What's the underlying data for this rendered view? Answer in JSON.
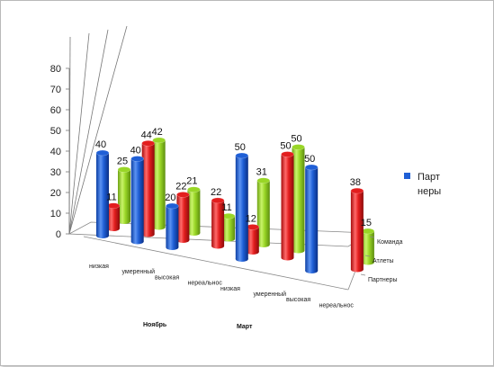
{
  "chart_data": {
    "type": "bar",
    "variant": "3d-cylinder",
    "title": "",
    "xlabel": "",
    "ylabel": "",
    "ylim": [
      0,
      80
    ],
    "yticks": [
      "0",
      "10",
      "20",
      "30",
      "40",
      "50",
      "60",
      "70",
      "80"
    ],
    "grid": false,
    "legend_position": "right",
    "categories": [
      "низкая",
      "умеренный",
      "высокая",
      "нереальнос",
      "низкая",
      "умеренный",
      "высокая",
      "нереальнос"
    ],
    "groups": [
      {
        "label": "Ноябрь",
        "span": [
          0,
          3
        ]
      },
      {
        "label": "Март",
        "span": [
          4,
          7
        ]
      }
    ],
    "depth_labels": [
      "Команда",
      "Атлеты",
      "Партнеры"
    ],
    "series": [
      {
        "name": "Партнеры",
        "legend_label": "Парт неры",
        "color": "#1f5fd6",
        "values": [
          40,
          40,
          20,
          null,
          50,
          null,
          50,
          null
        ]
      },
      {
        "name": "Атлеты",
        "color": "#e31e1e",
        "values": [
          11,
          44,
          22,
          22,
          12,
          50,
          null,
          38
        ]
      },
      {
        "name": "Команда",
        "color": "#99d626",
        "values": [
          25,
          42,
          21,
          11,
          31,
          50,
          null,
          15
        ]
      }
    ],
    "data_labels": [
      "40",
      "11",
      "40",
      "25",
      "44",
      "42",
      "20",
      "22",
      "21",
      "22",
      "11",
      "50",
      "12",
      "31",
      "50",
      "50",
      "38",
      "15"
    ]
  },
  "legend": {
    "line1": "Парт",
    "line2": "неры",
    "color": "#1f5fd6"
  }
}
